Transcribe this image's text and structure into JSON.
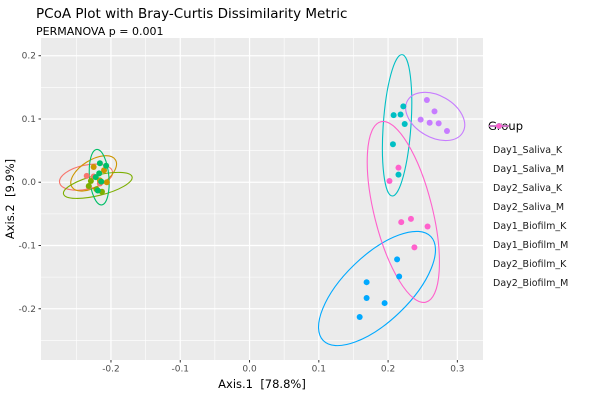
{
  "chart_data": {
    "type": "scatter",
    "title": "PCoA Plot with Bray-Curtis Dissimilarity Metric",
    "subtitle": "PERMANOVA p = 0.001",
    "xlabel": "Axis.1  [78.8%]",
    "ylabel": "Axis.2  [9.9%]",
    "xlim": [
      -0.301,
      0.337
    ],
    "ylim": [
      -0.281,
      0.228
    ],
    "x_ticks": [
      -0.2,
      -0.1,
      0.0,
      0.1,
      0.2,
      0.3
    ],
    "y_ticks": [
      -0.2,
      -0.1,
      0.0,
      0.1,
      0.2
    ],
    "minor_step": 0.05,
    "grid": true,
    "panel_color": "#EBEBEB",
    "grid_color": "#FFFFFF",
    "tick_color": "#333333",
    "tick_label_color": "#4D4D4D",
    "legend_position": "right",
    "legend_title": "Group",
    "groups": [
      {
        "name": "Day1_Saliva_K",
        "color": "#F8766D",
        "points": [
          [
            -0.235,
            0.01
          ],
          [
            -0.225,
            0.009
          ],
          [
            -0.216,
            -0.002
          ],
          [
            -0.232,
            -0.007
          ]
        ],
        "ellipse": {
          "cx": -0.236,
          "cy": 0.008,
          "rx": 0.039,
          "ry": 0.019,
          "angle": -12
        }
      },
      {
        "name": "Day1_Saliva_M",
        "color": "#CD9600",
        "points": [
          [
            -0.225,
            0.024
          ],
          [
            -0.21,
            0.019
          ],
          [
            -0.206,
            0.0
          ],
          [
            -0.216,
            0.003
          ]
        ],
        "ellipse": {
          "cx": -0.225,
          "cy": 0.014,
          "rx": 0.037,
          "ry": 0.021,
          "angle": -32
        }
      },
      {
        "name": "Day2_Saliva_K",
        "color": "#7CAE00",
        "points": [
          [
            -0.232,
            -0.006
          ],
          [
            -0.221,
            -0.011
          ],
          [
            -0.213,
            -0.015
          ],
          [
            -0.229,
            0.002
          ]
        ],
        "ellipse": {
          "cx": -0.219,
          "cy": -0.005,
          "rx": 0.051,
          "ry": 0.016,
          "angle": -14
        }
      },
      {
        "name": "Day2_Saliva_M",
        "color": "#00BE67",
        "points": [
          [
            -0.216,
            0.03
          ],
          [
            -0.207,
            0.026
          ],
          [
            -0.217,
            0.014
          ],
          [
            -0.222,
            0.008
          ],
          [
            -0.214,
            0.001
          ],
          [
            -0.219,
            -0.013
          ]
        ],
        "ellipse": {
          "cx": -0.217,
          "cy": 0.008,
          "rx": 0.014,
          "ry": 0.044,
          "angle": -5
        }
      },
      {
        "name": "Day1_Biofilm_K",
        "color": "#00BFC4",
        "points": [
          [
            0.222,
            0.12
          ],
          [
            0.208,
            0.106
          ],
          [
            0.218,
            0.107
          ],
          [
            0.224,
            0.092
          ],
          [
            0.207,
            0.06
          ],
          [
            0.215,
            0.012
          ]
        ],
        "ellipse": {
          "cx": 0.213,
          "cy": 0.09,
          "rx": 0.02,
          "ry": 0.112,
          "angle": 4
        }
      },
      {
        "name": "Day1_Biofilm_M",
        "color": "#00A9FF",
        "points": [
          [
            0.213,
            -0.122
          ],
          [
            0.216,
            -0.149
          ],
          [
            0.169,
            -0.158
          ],
          [
            0.169,
            -0.183
          ],
          [
            0.195,
            -0.191
          ],
          [
            0.159,
            -0.213
          ]
        ],
        "ellipse": {
          "cx": 0.184,
          "cy": -0.168,
          "rx": 0.108,
          "ry": 0.052,
          "angle": -44
        }
      },
      {
        "name": "Day2_Biofilm_K",
        "color": "#C77CFF",
        "points": [
          [
            0.256,
            0.13
          ],
          [
            0.267,
            0.112
          ],
          [
            0.247,
            0.099
          ],
          [
            0.26,
            0.094
          ],
          [
            0.273,
            0.093
          ],
          [
            0.285,
            0.081
          ]
        ],
        "ellipse": {
          "cx": 0.268,
          "cy": 0.104,
          "rx": 0.046,
          "ry": 0.033,
          "angle": 30
        }
      },
      {
        "name": "Day2_Biofilm_M",
        "color": "#FF61CC",
        "points": [
          [
            0.215,
            0.023
          ],
          [
            0.202,
            0.002
          ],
          [
            0.233,
            -0.058
          ],
          [
            0.219,
            -0.063
          ],
          [
            0.257,
            -0.07
          ],
          [
            0.238,
            -0.103
          ]
        ],
        "ellipse": {
          "cx": 0.222,
          "cy": -0.047,
          "rx": 0.042,
          "ry": 0.147,
          "angle": -14
        }
      }
    ]
  }
}
